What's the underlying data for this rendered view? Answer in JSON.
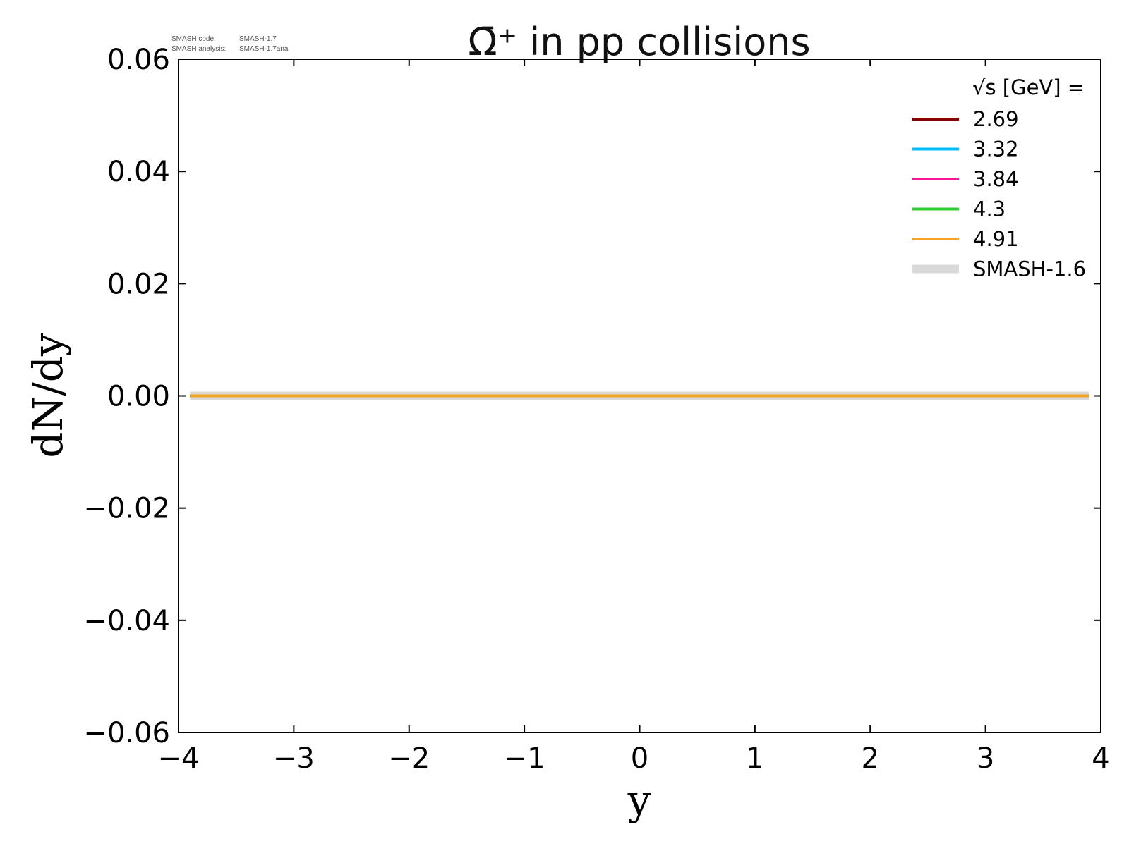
{
  "meta": {
    "code_label": "SMASH code:",
    "code_value": "SMASH-1.7",
    "analysis_label": "SMASH analysis:",
    "analysis_value": "SMASH-1.7ana"
  },
  "chart_data": {
    "type": "line",
    "title": "Ω̄⁺ in pp collisions",
    "xlabel": "y",
    "ylabel": "dN/dy",
    "xlim": [
      -4,
      4
    ],
    "ylim": [
      -0.06,
      0.06
    ],
    "xticks": [
      -4,
      -3,
      -2,
      -1,
      0,
      1,
      2,
      3,
      4
    ],
    "xtick_labels": [
      "−4",
      "−3",
      "−2",
      "−1",
      "0",
      "1",
      "2",
      "3",
      "4"
    ],
    "yticks": [
      -0.06,
      -0.04,
      -0.02,
      0.0,
      0.02,
      0.04,
      0.06
    ],
    "ytick_labels": [
      "−0.06",
      "−0.04",
      "−0.02",
      "0.00",
      "0.02",
      "0.04",
      "0.06"
    ],
    "grid": false,
    "legend_title": "√s  [GeV] =",
    "legend_position": "top-right",
    "series": [
      {
        "name": "SMASH-1.6",
        "color": "#d9d9d9",
        "x": [
          -3.9,
          3.9
        ],
        "values": [
          0,
          0
        ]
      },
      {
        "name": "2.69",
        "color": "#8b0000",
        "x": [
          -3.9,
          3.9
        ],
        "values": [
          0,
          0
        ]
      },
      {
        "name": "3.32",
        "color": "#00bfff",
        "x": [
          -3.9,
          3.9
        ],
        "values": [
          0,
          0
        ]
      },
      {
        "name": "3.84",
        "color": "#ff1493",
        "x": [
          -3.9,
          3.9
        ],
        "values": [
          0,
          0
        ]
      },
      {
        "name": "4.3",
        "color": "#32cd32",
        "x": [
          -3.9,
          3.9
        ],
        "values": [
          0,
          0
        ]
      },
      {
        "name": "4.91",
        "color": "#f4a41f",
        "x": [
          -3.9,
          3.9
        ],
        "values": [
          0,
          0
        ]
      }
    ],
    "legend_order": [
      "2.69",
      "3.32",
      "3.84",
      "4.3",
      "4.91",
      "SMASH-1.6"
    ]
  }
}
